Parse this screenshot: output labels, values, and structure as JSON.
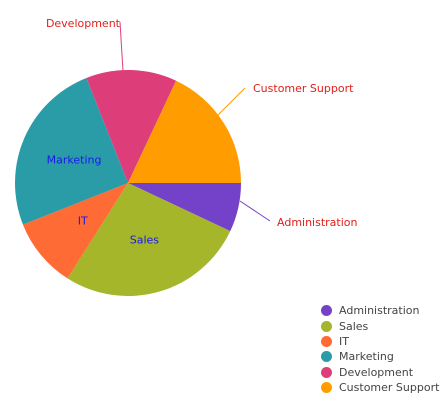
{
  "chart_data": {
    "type": "pie",
    "title": "",
    "slices": [
      {
        "label": "Administration",
        "value": 7,
        "color": "#7442C8"
      },
      {
        "label": "Sales",
        "value": 27,
        "color": "#A5B62A"
      },
      {
        "label": "IT",
        "value": 10,
        "color": "#FF6B35"
      },
      {
        "label": "Marketing",
        "value": 25,
        "color": "#2A9CA8"
      },
      {
        "label": "Development",
        "value": 13,
        "color": "#DD3E7A"
      },
      {
        "label": "Customer Support",
        "value": 18,
        "color": "#FF9C00"
      }
    ],
    "labels_outside": [
      "Customer Support",
      "Administration",
      "Development"
    ],
    "labels_inside": [
      "Marketing",
      "IT",
      "Sales"
    ],
    "label_color_outside": "#E0201B",
    "label_color_inside": "#1A1AE6",
    "legend_position": "bottom-right"
  }
}
